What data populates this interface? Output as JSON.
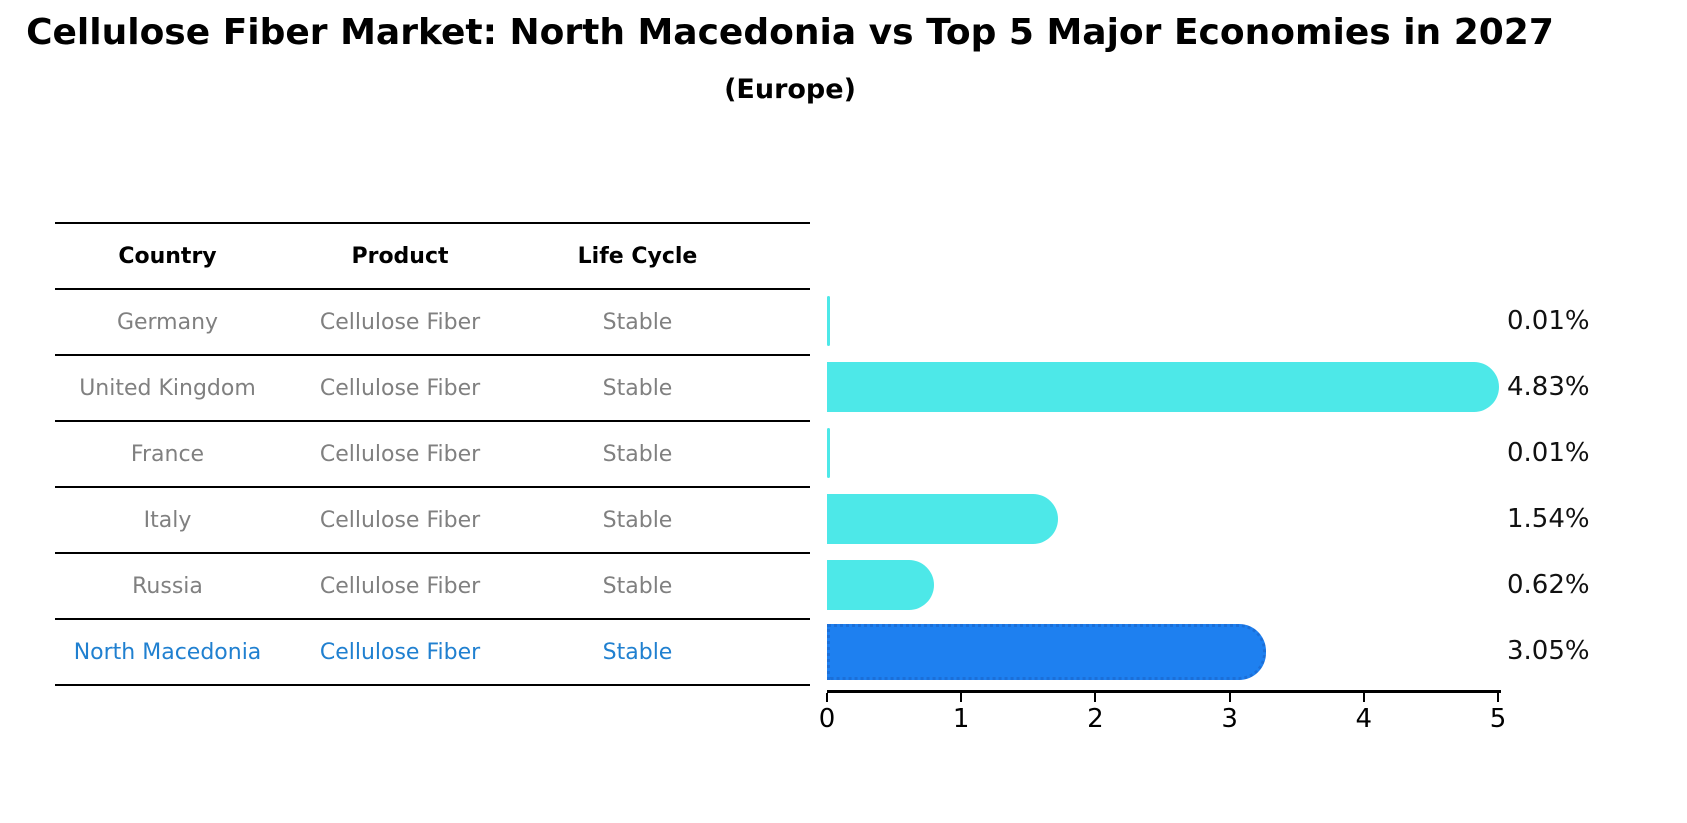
{
  "title": "Cellulose Fiber Market: North Macedonia vs Top 5 Major Economies in 2027",
  "subtitle": "(Europe)",
  "table": {
    "headers": [
      "Country",
      "Product",
      "Life Cycle"
    ],
    "rows": [
      {
        "country": "Germany",
        "product": "Cellulose Fiber",
        "life_cycle": "Stable",
        "highlighted": false
      },
      {
        "country": "United Kingdom",
        "product": "Cellulose Fiber",
        "life_cycle": "Stable",
        "highlighted": false
      },
      {
        "country": "France",
        "product": "Cellulose Fiber",
        "life_cycle": "Stable",
        "highlighted": false
      },
      {
        "country": "Italy",
        "product": "Cellulose Fiber",
        "life_cycle": "Stable",
        "highlighted": false
      },
      {
        "country": "Russia",
        "product": "Cellulose Fiber",
        "life_cycle": "Stable",
        "highlighted": false
      },
      {
        "country": "North Macedonia",
        "product": "Cellulose Fiber",
        "life_cycle": "Stable",
        "highlighted": true
      }
    ]
  },
  "chart_data": {
    "type": "bar",
    "orientation": "horizontal",
    "categories": [
      "Germany",
      "United Kingdom",
      "France",
      "Italy",
      "Russia",
      "North Macedonia"
    ],
    "values": [
      0.01,
      4.83,
      0.01,
      1.54,
      0.62,
      3.05
    ],
    "value_labels": [
      "0.01%",
      "4.83%",
      "0.01%",
      "1.54%",
      "0.62%",
      "3.05%"
    ],
    "xlim": [
      0,
      5
    ],
    "xticks": [
      "0",
      "1",
      "2",
      "3",
      "4",
      "5"
    ],
    "grid": false,
    "legend": "none",
    "bar_color": "#4de8e8",
    "highlight_bar_color": "#1e80f0",
    "highlight_border_color": "#1b6fd8",
    "highlight_text_color": "#2080d0",
    "highlight_index": 5,
    "value_label_color": "#111111"
  }
}
